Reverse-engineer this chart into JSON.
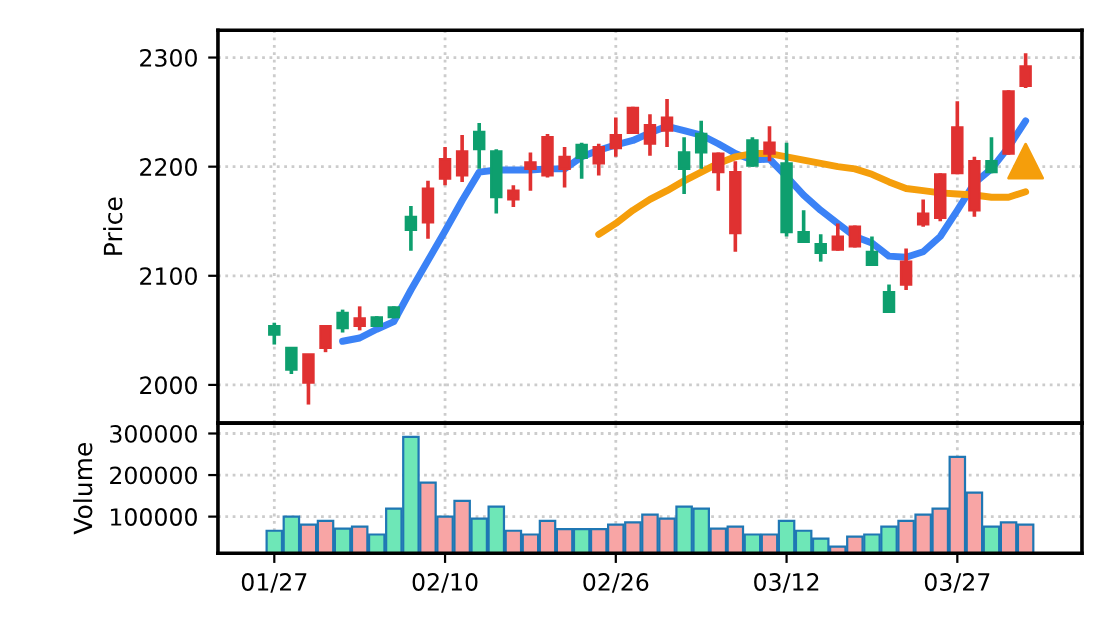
{
  "chart_data": [
    {
      "type": "candlestick",
      "ylabel": "Price",
      "ylim": [
        1965,
        2325
      ],
      "yticks": [
        2000,
        2100,
        2200,
        2300
      ],
      "grid": true,
      "tick_labels": "y",
      "ohlc": [
        [
          2054,
          2057,
          2037,
          2046
        ],
        [
          2034,
          2034,
          2010,
          2014
        ],
        [
          2002,
          2028,
          1982,
          2028
        ],
        [
          2034,
          2054,
          2030,
          2054
        ],
        [
          2066,
          2069,
          2048,
          2052
        ],
        [
          2054,
          2072,
          2050,
          2061
        ],
        [
          2062,
          2063,
          2053,
          2054
        ],
        [
          2071,
          2072,
          2061,
          2062
        ],
        [
          2154,
          2164,
          2123,
          2142
        ],
        [
          2149,
          2187,
          2134,
          2180
        ],
        [
          2189,
          2218,
          2183,
          2207
        ],
        [
          2192,
          2229,
          2186,
          2214
        ],
        [
          2232,
          2240,
          2198,
          2216
        ],
        [
          2214,
          2216,
          2157,
          2172
        ],
        [
          2170,
          2183,
          2163,
          2178
        ],
        [
          2198,
          2213,
          2178,
          2204
        ],
        [
          2192,
          2230,
          2190,
          2227
        ],
        [
          2198,
          2218,
          2181,
          2209
        ],
        [
          2220,
          2222,
          2189,
          2208
        ],
        [
          2203,
          2221,
          2192,
          2218
        ],
        [
          2217,
          2245,
          2209,
          2229
        ],
        [
          2231,
          2255,
          2230,
          2254
        ],
        [
          2221,
          2248,
          2210,
          2238
        ],
        [
          2233,
          2262,
          2218,
          2245
        ],
        [
          2213,
          2227,
          2175,
          2198
        ],
        [
          2230,
          2242,
          2198,
          2213
        ],
        [
          2195,
          2213,
          2178,
          2212
        ],
        [
          2139,
          2205,
          2122,
          2195
        ],
        [
          2224,
          2227,
          2200,
          2201
        ],
        [
          2212,
          2237,
          2205,
          2222
        ],
        [
          2203,
          2222,
          2136,
          2140
        ],
        [
          2140,
          2160,
          2130,
          2131
        ],
        [
          2129,
          2138,
          2113,
          2121
        ],
        [
          2124,
          2148,
          2123,
          2136
        ],
        [
          2127,
          2146,
          2126,
          2145
        ],
        [
          2122,
          2136,
          2109,
          2110
        ],
        [
          2085,
          2092,
          2066,
          2067
        ],
        [
          2092,
          2125,
          2087,
          2113
        ],
        [
          2147,
          2170,
          2145,
          2157
        ],
        [
          2153,
          2194,
          2150,
          2193
        ],
        [
          2194,
          2260,
          2193,
          2236
        ],
        [
          2160,
          2209,
          2154,
          2205
        ],
        [
          2205,
          2227,
          2194,
          2195
        ],
        [
          2212,
          2270,
          2211,
          2269
        ],
        [
          2274,
          2304,
          2272,
          2292
        ]
      ],
      "colors": [
        "#0e9f6e",
        "#0e9f6e",
        "#e03131",
        "#e03131",
        "#0e9f6e",
        "#e03131",
        "#0e9f6e",
        "#0e9f6e",
        "#0e9f6e",
        "#e03131",
        "#e03131",
        "#e03131",
        "#0e9f6e",
        "#0e9f6e",
        "#e03131",
        "#e03131",
        "#e03131",
        "#e03131",
        "#0e9f6e",
        "#e03131",
        "#e03131",
        "#e03131",
        "#e03131",
        "#e03131",
        "#0e9f6e",
        "#0e9f6e",
        "#e03131",
        "#e03131",
        "#0e9f6e",
        "#e03131",
        "#0e9f6e",
        "#0e9f6e",
        "#0e9f6e",
        "#e03131",
        "#e03131",
        "#0e9f6e",
        "#0e9f6e",
        "#e03131",
        "#e03131",
        "#e03131",
        "#e03131",
        "#e03131",
        "#0e9f6e",
        "#e03131",
        "#e03131"
      ],
      "series": [
        {
          "type": "line",
          "color": "#3b82f6",
          "values": [
            null,
            null,
            null,
            null,
            2040,
            2043,
            2051,
            2058,
            2087,
            2114,
            2141,
            2169,
            2195,
            2197,
            2197,
            2197,
            2198,
            2198,
            2209,
            2215,
            2220,
            2224,
            2231,
            2237,
            2233,
            2229,
            2221,
            2212,
            2206,
            2207,
            2191,
            2174,
            2160,
            2148,
            2136,
            2130,
            2118,
            2117,
            2122,
            2136,
            2160,
            2185,
            2198,
            2218,
            2242
          ]
        },
        {
          "type": "line",
          "color": "#f59e0b",
          "values": [
            null,
            null,
            null,
            null,
            null,
            null,
            null,
            null,
            null,
            null,
            null,
            null,
            null,
            null,
            null,
            null,
            null,
            null,
            null,
            2138,
            2148,
            2160,
            2170,
            2178,
            2187,
            2195,
            2203,
            2209,
            2212,
            2212,
            2209,
            2206,
            2203,
            2200,
            2198,
            2193,
            2186,
            2180,
            2178,
            2176,
            2175,
            2174,
            2172,
            2172,
            2177
          ]
        },
        {
          "type": "scatter",
          "color": "#f59e0b",
          "marker": "triangle",
          "values": [
            null,
            null,
            null,
            null,
            null,
            null,
            null,
            null,
            null,
            null,
            null,
            null,
            null,
            null,
            null,
            null,
            null,
            null,
            null,
            null,
            null,
            null,
            null,
            null,
            null,
            null,
            null,
            null,
            null,
            null,
            null,
            null,
            null,
            null,
            null,
            null,
            null,
            null,
            null,
            null,
            null,
            null,
            null,
            null,
            2205
          ]
        }
      ]
    },
    {
      "type": "bar",
      "ylabel": "Volume",
      "ylim": [
        12000,
        325000
      ],
      "yticks": [
        100000,
        200000,
        300000
      ],
      "grid": true,
      "categories": [
        "01/27",
        null,
        null,
        null,
        null,
        null,
        null,
        null,
        null,
        null,
        "02/10",
        null,
        null,
        null,
        null,
        null,
        null,
        null,
        null,
        null,
        "02/26",
        null,
        null,
        null,
        null,
        null,
        null,
        null,
        null,
        null,
        "03/12",
        null,
        null,
        null,
        null,
        null,
        null,
        null,
        null,
        null,
        "03/27",
        null,
        null,
        null,
        null
      ],
      "values": [
        66000,
        100000,
        81000,
        90000,
        71000,
        76000,
        57000,
        119000,
        292000,
        182000,
        100000,
        138000,
        95000,
        124000,
        66000,
        57000,
        90000,
        70000,
        70000,
        70000,
        81000,
        86000,
        105000,
        95000,
        124000,
        119000,
        71000,
        76000,
        57000,
        57000,
        90000,
        66000,
        47000,
        28000,
        52000,
        57000,
        76000,
        90000,
        105000,
        119000,
        244000,
        158000,
        76000,
        86000,
        81000
      ],
      "colors": [
        "#6ee7b7",
        "#6ee7b7",
        "#f8a5a5",
        "#f8a5a5",
        "#6ee7b7",
        "#f8a5a5",
        "#6ee7b7",
        "#6ee7b7",
        "#6ee7b7",
        "#f8a5a5",
        "#f8a5a5",
        "#f8a5a5",
        "#6ee7b7",
        "#6ee7b7",
        "#f8a5a5",
        "#f8a5a5",
        "#f8a5a5",
        "#f8a5a5",
        "#6ee7b7",
        "#f8a5a5",
        "#f8a5a5",
        "#f8a5a5",
        "#f8a5a5",
        "#f8a5a5",
        "#6ee7b7",
        "#6ee7b7",
        "#f8a5a5",
        "#f8a5a5",
        "#6ee7b7",
        "#f8a5a5",
        "#6ee7b7",
        "#6ee7b7",
        "#6ee7b7",
        "#f8a5a5",
        "#f8a5a5",
        "#6ee7b7",
        "#6ee7b7",
        "#f8a5a5",
        "#f8a5a5",
        "#f8a5a5",
        "#f8a5a5",
        "#f8a5a5",
        "#6ee7b7",
        "#f8a5a5",
        "#f8a5a5"
      ]
    }
  ]
}
